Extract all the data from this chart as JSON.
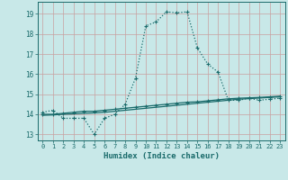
{
  "xlabel": "Humidex (Indice chaleur)",
  "xlim": [
    -0.5,
    23.5
  ],
  "ylim": [
    12.7,
    19.6
  ],
  "yticks": [
    13,
    14,
    15,
    16,
    17,
    18,
    19
  ],
  "xticks": [
    0,
    1,
    2,
    3,
    4,
    5,
    6,
    7,
    8,
    9,
    10,
    11,
    12,
    13,
    14,
    15,
    16,
    17,
    18,
    19,
    20,
    21,
    22,
    23
  ],
  "background_color": "#c8e8e8",
  "grid_color": "#b0d0d0",
  "line_color": "#1a6b6b",
  "series1_x": [
    0,
    1,
    2,
    3,
    4,
    5,
    6,
    7,
    8,
    9,
    10,
    11,
    12,
    13,
    14,
    15,
    16,
    17,
    18,
    19,
    20,
    21,
    22,
    23
  ],
  "series1_y": [
    14.1,
    14.2,
    13.8,
    13.8,
    13.8,
    13.0,
    13.8,
    14.0,
    14.5,
    15.8,
    18.4,
    18.6,
    19.1,
    19.05,
    19.1,
    17.3,
    16.5,
    16.1,
    14.7,
    14.7,
    14.8,
    14.7,
    14.75,
    14.8
  ],
  "series2_x": [
    0,
    1,
    2,
    3,
    4,
    5,
    6,
    7,
    8,
    9,
    10,
    11,
    12,
    13,
    14,
    15,
    16,
    17,
    18,
    19,
    20,
    21,
    22,
    23
  ],
  "series2_y": [
    14.0,
    14.0,
    14.05,
    14.1,
    14.15,
    14.15,
    14.2,
    14.25,
    14.3,
    14.35,
    14.4,
    14.45,
    14.5,
    14.55,
    14.6,
    14.62,
    14.67,
    14.72,
    14.77,
    14.8,
    14.82,
    14.84,
    14.87,
    14.9
  ],
  "series3_x": [
    0,
    1,
    2,
    3,
    4,
    5,
    6,
    7,
    8,
    9,
    10,
    11,
    12,
    13,
    14,
    15,
    16,
    17,
    18,
    19,
    20,
    21,
    22,
    23
  ],
  "series3_y": [
    13.95,
    13.97,
    14.0,
    14.02,
    14.05,
    14.07,
    14.1,
    14.15,
    14.2,
    14.25,
    14.3,
    14.35,
    14.4,
    14.45,
    14.5,
    14.55,
    14.6,
    14.65,
    14.7,
    14.75,
    14.78,
    14.81,
    14.84,
    14.87
  ]
}
